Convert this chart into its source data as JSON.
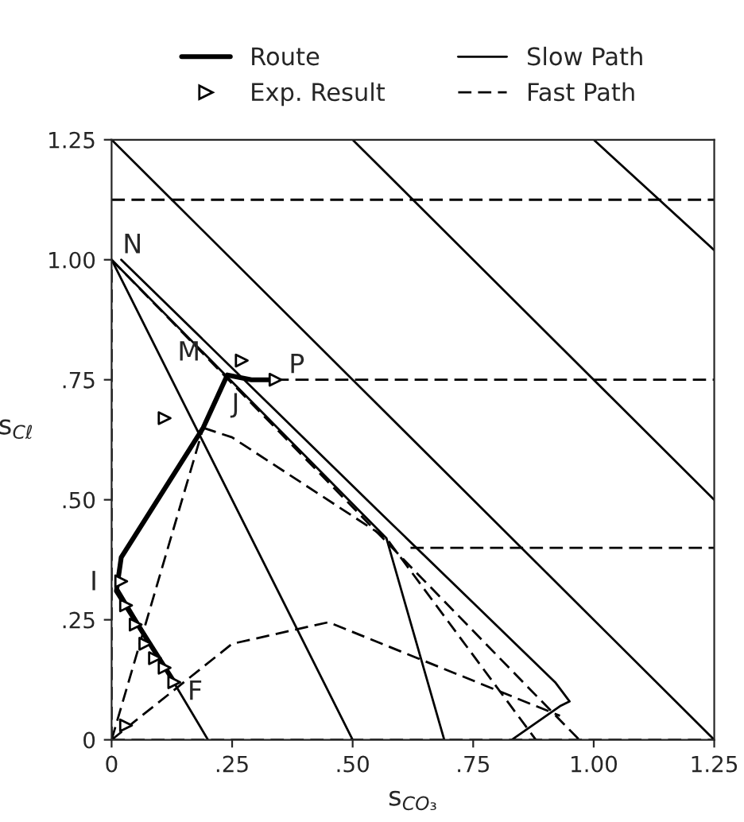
{
  "chart_data": {
    "type": "line",
    "xlabel": "s$_{CO₃}$",
    "ylabel": "s$_{Cℓ}$",
    "xlim": [
      0,
      1.25
    ],
    "ylim": [
      0,
      1.25
    ],
    "xticks": [
      0,
      {
        "value": 0.25,
        "label": ".25"
      },
      {
        "value": 0.5,
        "label": ".50"
      },
      {
        "value": 0.75,
        "label": ".75"
      },
      {
        "value": 1.0,
        "label": "1.00"
      },
      {
        "value": 1.25,
        "label": "1.25"
      }
    ],
    "yticks": [
      0,
      {
        "value": 0.25,
        "label": ".25"
      },
      {
        "value": 0.5,
        "label": ".50"
      },
      {
        "value": 0.75,
        "label": ".75"
      },
      {
        "value": 1.0,
        "label": "1.00"
      },
      {
        "value": 1.25,
        "label": "1.25"
      }
    ],
    "legend": "top",
    "series": [
      {
        "name": "Route",
        "color": "#000000",
        "type": "line",
        "line_style": "solid",
        "marker": "none",
        "x": [
          0.13,
          0.01,
          0.02,
          0.19,
          0.24,
          0.29,
          0.34
        ],
        "values": [
          0.12,
          0.31,
          0.38,
          0.65,
          0.76,
          0.75,
          0.75
        ]
      },
      {
        "name": "Exp. Result",
        "color": "#000000",
        "type": "scatter",
        "marker": "triangle",
        "x": [
          0.02,
          0.03,
          0.05,
          0.07,
          0.09,
          0.11,
          0.13,
          0.03,
          0.11,
          0.27,
          0.34
        ],
        "values": [
          0.33,
          0.28,
          0.24,
          0.2,
          0.17,
          0.15,
          0.12,
          0.03,
          0.67,
          0.79,
          0.75
        ]
      },
      {
        "name": "Slow Path",
        "color": "#000000",
        "type": "line",
        "line_style": "solid",
        "marker": "none",
        "x": [
          0,
          1.25
        ],
        "values": [
          1.25,
          0
        ]
      },
      {
        "color": "#000000",
        "type": "line",
        "line_style": "solid",
        "marker": "none",
        "x": [
          0.5,
          1.25
        ],
        "values": [
          1.25,
          0.5
        ]
      },
      {
        "color": "#000000",
        "type": "line",
        "line_style": "solid",
        "marker": "none",
        "x": [
          1.0,
          1.25
        ],
        "values": [
          1.25,
          1.02
        ]
      },
      {
        "color": "#000000",
        "type": "line",
        "line_style": "solid",
        "marker": "none",
        "x": [
          0,
          0.5
        ],
        "values": [
          1.0,
          0
        ]
      },
      {
        "color": "#000000",
        "type": "line",
        "line_style": "solid",
        "marker": "none",
        "x": [
          0.01,
          0.2
        ],
        "values": [
          0.32,
          0
        ]
      },
      {
        "color": "#000000",
        "type": "line",
        "line_style": "solid",
        "marker": "none",
        "x": [
          0.0,
          0.57,
          0.69
        ],
        "values": [
          1.0,
          0.42,
          0
        ]
      },
      {
        "color": "#000000",
        "type": "line",
        "line_style": "solid",
        "marker": "none",
        "x": [
          0.02,
          0.55,
          0.92,
          0.95,
          0.93,
          0.83
        ],
        "values": [
          1.0,
          0.48,
          0.12,
          0.08,
          0.07,
          0.0
        ]
      },
      {
        "name": "Fast Path",
        "color": "#000000",
        "type": "line",
        "line_style": "dashed",
        "marker": "none",
        "x": [
          0,
          1.25
        ],
        "values": [
          1.125,
          1.125
        ]
      },
      {
        "color": "#000000",
        "type": "line",
        "line_style": "dashed",
        "marker": "none",
        "x": [
          0.34,
          1.25
        ],
        "values": [
          0.75,
          0.75
        ]
      },
      {
        "color": "#000000",
        "type": "line",
        "line_style": "dashed",
        "marker": "none",
        "x": [
          0.62,
          1.25
        ],
        "values": [
          0.4,
          0.4
        ]
      },
      {
        "color": "#000000",
        "type": "line",
        "line_style": "dashed",
        "marker": "none",
        "x": [
          0,
          1.25
        ],
        "values": [
          0,
          0
        ]
      },
      {
        "color": "#000000",
        "type": "line",
        "line_style": "dashed",
        "marker": "none",
        "x": [
          0,
          0
        ],
        "values": [
          0,
          1.0
        ]
      },
      {
        "color": "#000000",
        "type": "line",
        "line_style": "dashed",
        "marker": "none",
        "x": [
          0,
          0.97
        ],
        "values": [
          1.0,
          0
        ]
      },
      {
        "color": "#000000",
        "type": "line",
        "line_style": "dashed",
        "marker": "none",
        "x": [
          0.19,
          0.25,
          0.57,
          0.88
        ],
        "values": [
          0.65,
          0.63,
          0.42,
          0
        ]
      },
      {
        "color": "#000000",
        "type": "line",
        "line_style": "dashed",
        "marker": "none",
        "x": [
          0,
          0.25,
          0.45,
          0.93
        ],
        "values": [
          0,
          0.2,
          0.245,
          0.05
        ]
      },
      {
        "color": "#000000",
        "type": "line",
        "line_style": "dashed",
        "marker": "none",
        "x": [
          0,
          0.19
        ],
        "values": [
          0,
          0.65
        ]
      }
    ],
    "annotations": [
      {
        "text": "N",
        "x": 0,
        "y": 1.0
      },
      {
        "text": "M",
        "x": 0.21,
        "y": 0.79
      },
      {
        "text": "J",
        "x": 0.24,
        "y": 0.76
      },
      {
        "text": "P",
        "x": 0.34,
        "y": 0.75
      },
      {
        "text": "I",
        "x": 0.01,
        "y": 0.33
      },
      {
        "text": "F",
        "x": 0.13,
        "y": 0.12
      }
    ]
  }
}
